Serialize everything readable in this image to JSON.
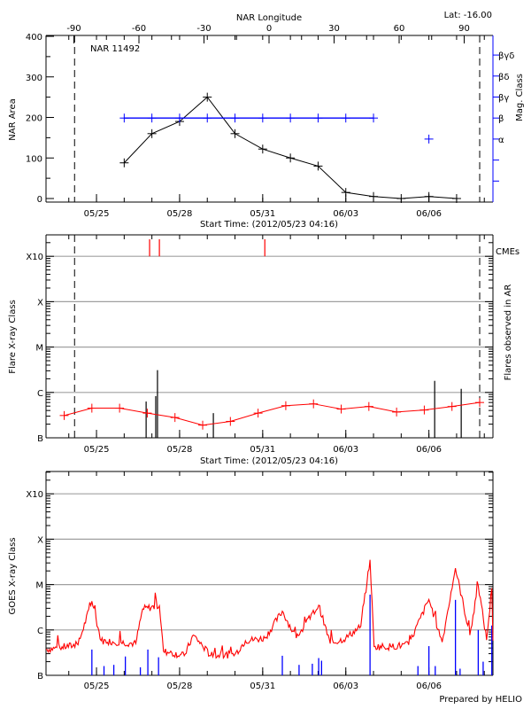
{
  "footer": "Prepared by HELIO",
  "colors": {
    "axis": "#000000",
    "mag_class": "#0000ff",
    "goes_long": "#ff0000",
    "goes_short": "#0000ff",
    "cme": "#ff0000",
    "grid": "#a0a0a0"
  },
  "chart_data": [
    {
      "type": "line",
      "title": "NAR 11492",
      "corner_label": "Lat: -16.00",
      "top_axis_label": "NAR Longitude",
      "top_axis_ticks": [
        -90,
        -60,
        -30,
        0,
        30,
        60,
        90
      ],
      "xlabel": "Start Time: (2012/05/23 04:16)",
      "xticks": [
        "05/25",
        "05/28",
        "05/31",
        "06/03",
        "06/06"
      ],
      "x_range": [
        "2012-05-23T04:16",
        "2012-06-08T07:30"
      ],
      "ylabel": "NAR Area",
      "ylim": [
        0,
        400
      ],
      "yticks": [
        0,
        100,
        200,
        300,
        400
      ],
      "y2label": "Mag. Class",
      "y2_levels": [
        "α",
        "β",
        "βγ",
        "βδ",
        "βγδ"
      ],
      "limb_lines": [
        "2012-05-24T05:00",
        "2012-06-07T20:00"
      ],
      "series": [
        {
          "key": "area",
          "color": "#000000",
          "points": [
            [
              "2012-05-26T00:00",
              88
            ],
            [
              "2012-05-27T00:00",
              160
            ],
            [
              "2012-05-28T00:00",
              190
            ],
            [
              "2012-05-29T00:00",
              250
            ],
            [
              "2012-05-30T00:00",
              160
            ],
            [
              "2012-05-31T00:00",
              122
            ],
            [
              "2012-06-01T00:00",
              100
            ],
            [
              "2012-06-02T00:00",
              80
            ],
            [
              "2012-06-03T00:00",
              15
            ],
            [
              "2012-06-04T00:00",
              5
            ],
            [
              "2012-06-05T00:00",
              0
            ],
            [
              "2012-06-06T00:00",
              5
            ],
            [
              "2012-06-07T00:00",
              0
            ]
          ]
        },
        {
          "key": "mag_class",
          "color": "#0000ff",
          "points": [
            [
              "2012-05-26T00:00",
              "β"
            ],
            [
              "2012-05-27T00:00",
              "β"
            ],
            [
              "2012-05-28T00:00",
              "β"
            ],
            [
              "2012-05-29T00:00",
              "β"
            ],
            [
              "2012-05-30T00:00",
              "β"
            ],
            [
              "2012-05-31T00:00",
              "β"
            ],
            [
              "2012-06-01T00:00",
              "β"
            ],
            [
              "2012-06-02T00:00",
              "β"
            ],
            [
              "2012-06-03T00:00",
              "β"
            ],
            [
              "2012-06-04T00:00",
              "β"
            ],
            [
              "2012-06-06T00:00",
              "α"
            ]
          ]
        }
      ]
    },
    {
      "type": "line",
      "xlabel": "Start Time: (2012/05/23 04:16)",
      "xticks": [
        "05/25",
        "05/28",
        "05/31",
        "06/03",
        "06/06"
      ],
      "ylabel": "Flare X-ray Class",
      "y2label": "Flares observed in AR",
      "yscale": "log",
      "ylim": [
        1e-07,
        0.003
      ],
      "yticks": [
        {
          "label": "B",
          "value": 1e-07
        },
        {
          "label": "C",
          "value": 1e-06
        },
        {
          "label": "M",
          "value": 1e-05
        },
        {
          "label": "X",
          "value": 0.0001
        },
        {
          "label": "X10",
          "value": 0.001
        }
      ],
      "grid": true,
      "cme_label": "CMEs",
      "cmes": [
        "2012-05-26T22:00",
        "2012-05-27T06:30",
        "2012-05-31T01:50"
      ],
      "limb_lines": [
        "2012-05-24T05:00",
        "2012-06-07T20:00"
      ],
      "daily_average": [
        [
          "2012-05-23T20:00",
          3.1e-07
        ],
        [
          "2012-05-24T20:00",
          4.5e-07
        ],
        [
          "2012-05-25T20:00",
          4.5e-07
        ],
        [
          "2012-05-26T20:00",
          3.5e-07
        ],
        [
          "2012-05-27T20:00",
          2.8e-07
        ],
        [
          "2012-05-28T20:00",
          1.9e-07
        ],
        [
          "2012-05-29T20:00",
          2.3e-07
        ],
        [
          "2012-05-30T20:00",
          3.5e-07
        ],
        [
          "2012-05-31T20:00",
          5.1e-07
        ],
        [
          "2012-06-01T20:00",
          5.6e-07
        ],
        [
          "2012-06-02T20:00",
          4.3e-07
        ],
        [
          "2012-06-03T20:00",
          4.9e-07
        ],
        [
          "2012-06-04T20:00",
          3.7e-07
        ],
        [
          "2012-06-05T20:00",
          4.1e-07
        ],
        [
          "2012-06-06T20:00",
          4.9e-07
        ],
        [
          "2012-06-07T20:00",
          6e-07
        ]
      ],
      "flares": [
        [
          "2012-05-26T19:00",
          6.3e-07
        ],
        [
          "2012-05-27T03:20",
          8.3e-07
        ],
        [
          "2012-05-27T04:50",
          3.1e-06
        ],
        [
          "2012-05-29T05:15",
          3.5e-07
        ],
        [
          "2012-06-06T05:00",
          1.8e-06
        ],
        [
          "2012-06-07T04:00",
          1.2e-06
        ]
      ]
    },
    {
      "type": "line",
      "xticks": [
        "05/25",
        "05/28",
        "05/31",
        "06/03",
        "06/06"
      ],
      "ylabel": "GOES X-ray Class",
      "yscale": "log",
      "ylim": [
        1e-07,
        0.003
      ],
      "yticks": [
        {
          "label": "B",
          "value": 1e-07
        },
        {
          "label": "C",
          "value": 1e-06
        },
        {
          "label": "M",
          "value": 1e-05
        },
        {
          "label": "X",
          "value": 0.0001
        },
        {
          "label": "X10",
          "value": 0.001
        }
      ],
      "grid": true,
      "long_channel": [
        [
          "2012-05-23T04:16",
          3.7e-07
        ],
        [
          "2012-05-24T08:00",
          4.7e-07
        ],
        [
          "2012-05-24T20:00",
          4.3e-06
        ],
        [
          "2012-05-25T04:00",
          5.8e-07
        ],
        [
          "2012-05-26T10:00",
          5e-07
        ],
        [
          "2012-05-26T16:00",
          2.9e-06
        ],
        [
          "2012-05-27T06:30",
          3.4e-06
        ],
        [
          "2012-05-27T10:00",
          3.4e-07
        ],
        [
          "2012-05-28T04:00",
          2.7e-07
        ],
        [
          "2012-05-28T12:00",
          7.7e-07
        ],
        [
          "2012-05-29T03:00",
          2.7e-07
        ],
        [
          "2012-05-30T00:00",
          2.9e-07
        ],
        [
          "2012-05-30T09:00",
          5.8e-07
        ],
        [
          "2012-05-31T02:00",
          6.6e-07
        ],
        [
          "2012-05-31T17:00",
          2.6e-06
        ],
        [
          "2012-06-01T05:00",
          6.6e-07
        ],
        [
          "2012-06-02T00:30",
          3.5e-06
        ],
        [
          "2012-06-02T10:30",
          5e-07
        ],
        [
          "2012-06-03T00:00",
          6.6e-07
        ],
        [
          "2012-06-03T13:00",
          1.2e-06
        ],
        [
          "2012-06-03T21:00",
          3.5e-05
        ],
        [
          "2012-06-04T00:30",
          4.3e-07
        ],
        [
          "2012-06-04T15:00",
          4.3e-07
        ],
        [
          "2012-06-05T06:30",
          4.7e-07
        ],
        [
          "2012-06-06T00:00",
          4.7e-06
        ],
        [
          "2012-06-06T11:30",
          5.4e-07
        ],
        [
          "2012-06-06T23:00",
          2.3e-05
        ],
        [
          "2012-06-07T11:30",
          7.7e-07
        ],
        [
          "2012-06-07T18:45",
          9.5e-06
        ],
        [
          "2012-06-08T02:00",
          6e-07
        ],
        [
          "2012-06-08T06:30",
          8.3e-06
        ],
        [
          "2012-06-08T07:30",
          5.8e-07
        ]
      ],
      "short_channel": [
        [
          "2012-05-24T20:00",
          3.7e-07
        ],
        [
          "2012-05-25T06:30",
          1.6e-07
        ],
        [
          "2012-05-25T15:00",
          1.7e-07
        ],
        [
          "2012-05-26T01:00",
          2.6e-07
        ],
        [
          "2012-05-26T14:00",
          1.5e-07
        ],
        [
          "2012-05-26T20:30",
          3.7e-07
        ],
        [
          "2012-05-27T05:45",
          2.5e-07
        ],
        [
          "2012-05-31T17:00",
          2.7e-07
        ],
        [
          "2012-06-01T07:30",
          1.7e-07
        ],
        [
          "2012-06-01T19:00",
          1.8e-07
        ],
        [
          "2012-06-02T00:30",
          2.4e-07
        ],
        [
          "2012-06-02T03:00",
          2.1e-07
        ],
        [
          "2012-06-03T21:00",
          6e-06
        ],
        [
          "2012-06-05T14:30",
          1.6e-07
        ],
        [
          "2012-06-06T00:00",
          4.4e-07
        ],
        [
          "2012-06-06T05:30",
          1.6e-07
        ],
        [
          "2012-06-06T23:00",
          4.6e-06
        ],
        [
          "2012-06-07T03:00",
          1.4e-07
        ],
        [
          "2012-06-07T18:45",
          1e-06
        ],
        [
          "2012-06-07T23:00",
          2e-07
        ],
        [
          "2012-06-08T06:30",
          1.25e-06
        ]
      ]
    }
  ]
}
